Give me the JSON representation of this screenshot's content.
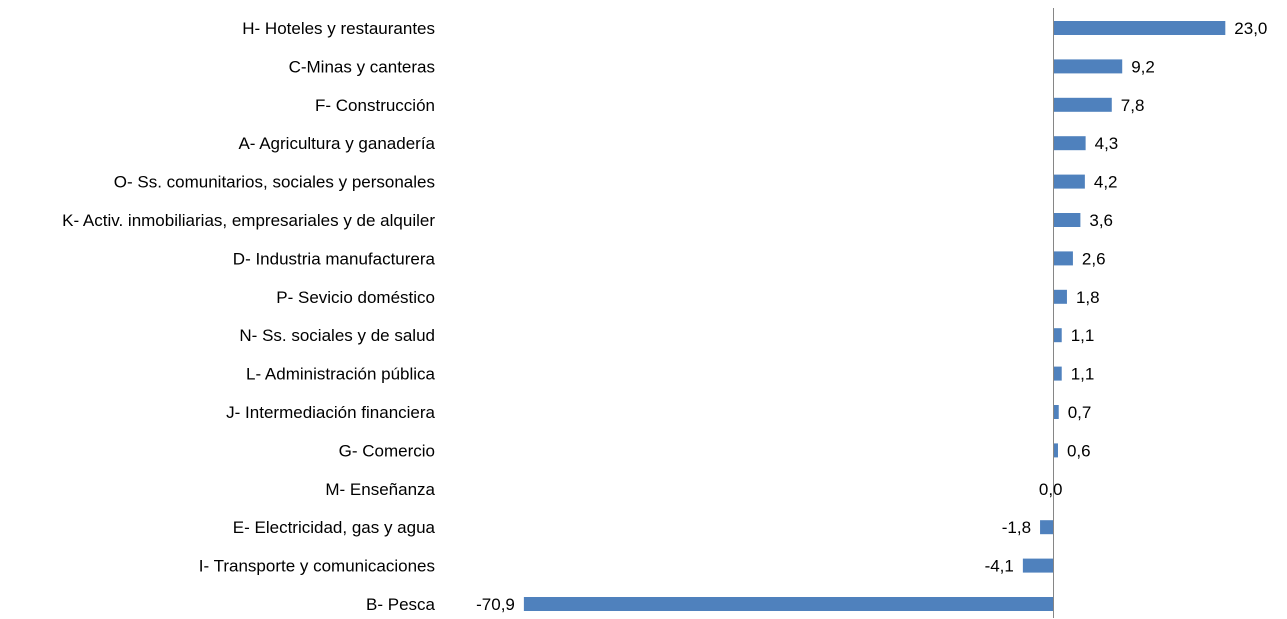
{
  "colors": {
    "bar": "#4f81bd",
    "axis": "#868686",
    "text": "#000000",
    "background": "#ffffff"
  },
  "chart_data": {
    "type": "bar",
    "orientation": "horizontal",
    "categories": [
      "H- Hoteles y restaurantes",
      "C-Minas y canteras",
      "F- Construcción",
      "A- Agricultura y ganadería",
      "O- Ss. comunitarios, sociales y personales",
      "K- Activ. inmobiliarias, empresariales y de alquiler",
      "D- Industria manufacturera",
      "P- Sevicio doméstico",
      "N- Ss. sociales y de salud",
      "L- Administración pública",
      "J- Intermediación financiera",
      "G- Comercio",
      "M- Enseñanza",
      "E- Electricidad, gas y agua",
      "I- Transporte y comunicaciones",
      "B- Pesca"
    ],
    "values": [
      23.0,
      9.2,
      7.8,
      4.3,
      4.2,
      3.6,
      2.6,
      1.8,
      1.1,
      1.1,
      0.7,
      0.6,
      0.0,
      -1.8,
      -4.1,
      -70.9
    ],
    "value_labels": [
      "23,0",
      "9,2",
      "7,8",
      "4,3",
      "4,2",
      "3,6",
      "2,6",
      "1,8",
      "1,1",
      "1,1",
      "0,7",
      "0,6",
      "0,0",
      "-1,8",
      "-4,1",
      "-70,9"
    ],
    "title": "",
    "xlabel": "",
    "ylabel": "",
    "xlim": [
      -70.9,
      23.0
    ],
    "grid": false,
    "legend": "none"
  }
}
